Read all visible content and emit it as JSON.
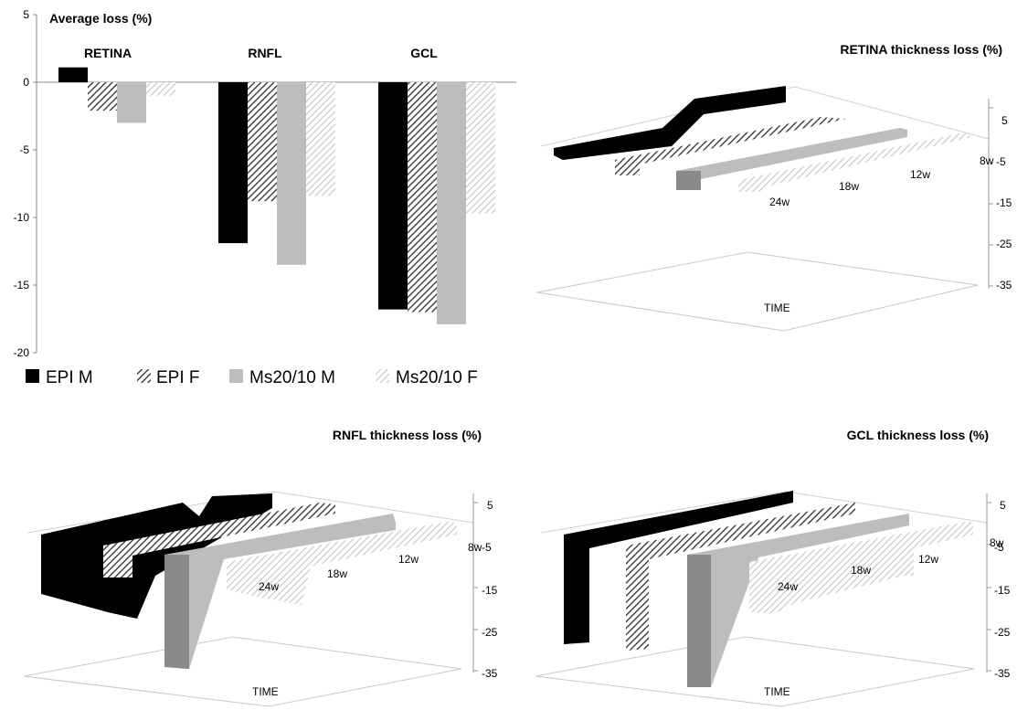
{
  "colors": {
    "epi_m": "#000000",
    "epi_f_hatch": "#3a3a3a",
    "ms_m": "#bdbdbd",
    "ms_f_hatch": "#c8c8c8",
    "ms_m_side": "#8a8a8a"
  },
  "chart_data": [
    {
      "type": "bar",
      "title": "Average  loss (%)",
      "categories": [
        "RETINA",
        "RNFL",
        "GCL"
      ],
      "series": [
        {
          "name": "EPI M",
          "values": [
            1.1,
            -11.9,
            -16.8
          ]
        },
        {
          "name": "EPI F",
          "values": [
            -2.1,
            -8.8,
            -17.0
          ]
        },
        {
          "name": "Ms20/10 M",
          "values": [
            -3.0,
            -13.5,
            -17.9
          ]
        },
        {
          "name": "Ms20/10 F",
          "values": [
            -1.0,
            -8.4,
            -9.7
          ]
        }
      ],
      "ylim": [
        -20,
        5
      ],
      "yticks": [
        "5",
        "0",
        "-5",
        "-10",
        "-15",
        "-20"
      ],
      "legend_position": "bottom"
    },
    {
      "type": "area",
      "title": "RETINA thickness loss (%)",
      "xlabel": "TIME",
      "depth_labels": [
        "24w",
        "18w",
        "12w",
        "8w"
      ],
      "yticks": [
        "5",
        "-5",
        "-15",
        "-25",
        "-35"
      ],
      "ylim": [
        -35,
        5
      ]
    },
    {
      "type": "area",
      "title": "RNFL thickness loss (%)",
      "xlabel": "TIME",
      "depth_labels": [
        "24w",
        "18w",
        "12w",
        "8w"
      ],
      "yticks": [
        "5",
        "-5",
        "-15",
        "-25",
        "-35"
      ],
      "ylim": [
        -35,
        5
      ]
    },
    {
      "type": "area",
      "title": "GCL thickness loss (%)",
      "xlabel": "TIME",
      "depth_labels": [
        "24w",
        "18w",
        "12w",
        "8w"
      ],
      "yticks": [
        "5",
        "-5",
        "-15",
        "-25",
        "-35"
      ],
      "ylim": [
        -35,
        5
      ]
    }
  ]
}
